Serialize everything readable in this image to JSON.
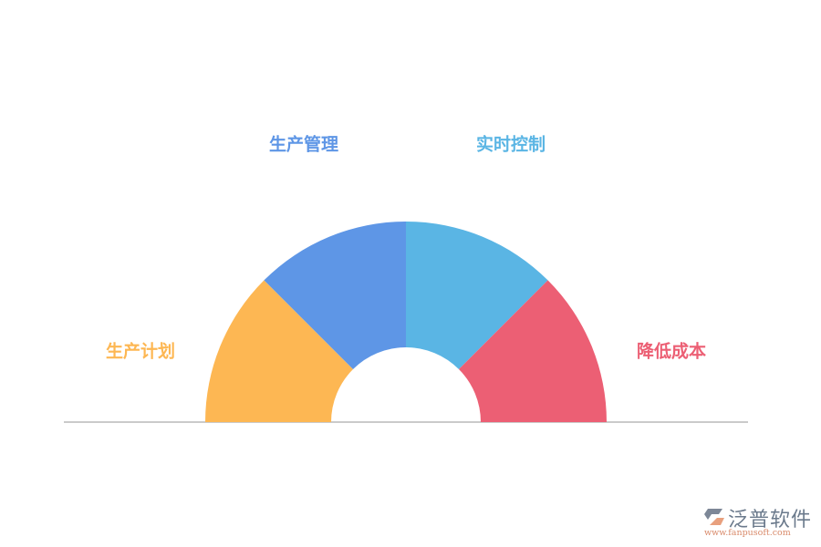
{
  "segments": [
    {
      "label": "生产计划",
      "color": "#FDB753"
    },
    {
      "label": "生产管理",
      "color": "#5E96E6"
    },
    {
      "label": "实时控制",
      "color": "#5AB5E4"
    },
    {
      "label": "降低成本",
      "color": "#EC5F74"
    }
  ],
  "baseline_color": "#B8B8B8",
  "logo": {
    "name": "泛普软件",
    "url": "www.fanpusoft.com"
  }
}
